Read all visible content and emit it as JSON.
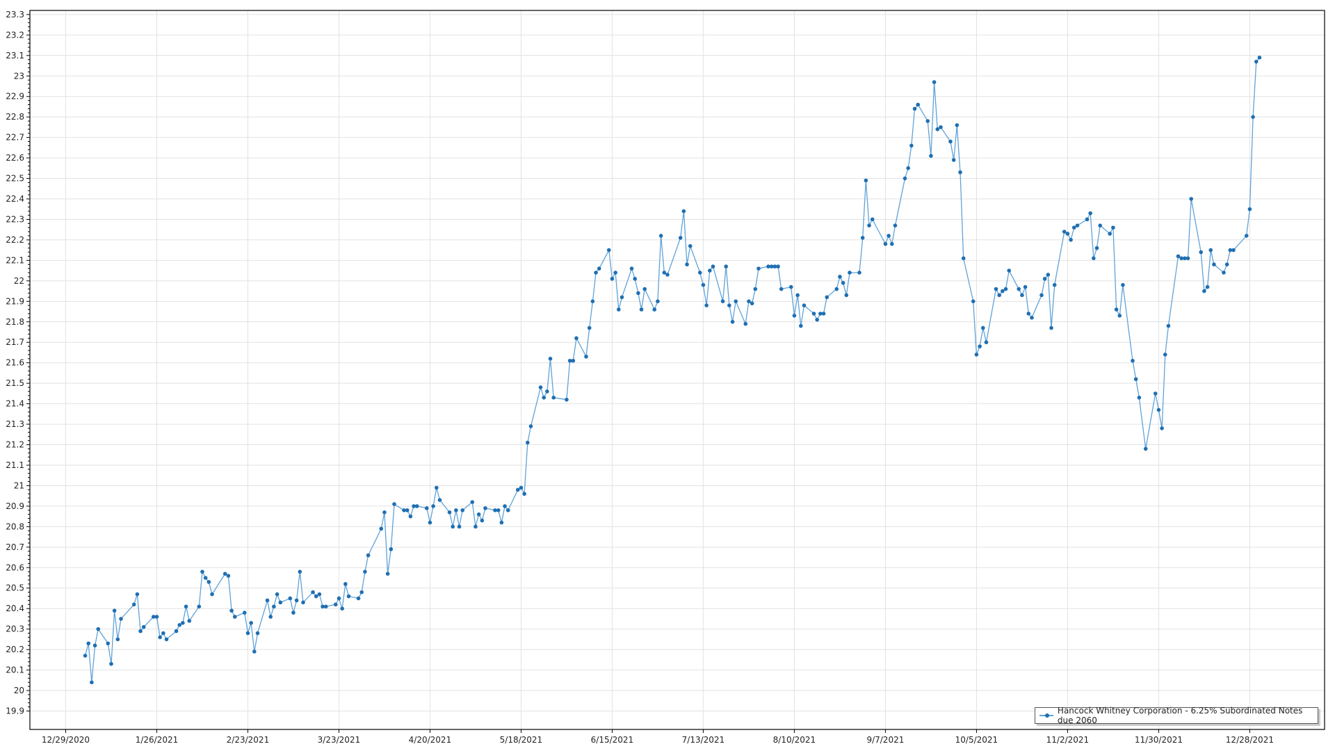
{
  "chart_data": {
    "type": "line",
    "title": "",
    "xlabel": "",
    "ylabel": "",
    "ylim": [
      19.81,
      23.32
    ],
    "xlim": [
      "12/18/2020",
      "1/20/2022"
    ],
    "grid": true,
    "legend_position": "bottom-right",
    "x_ticks": [
      "12/29/2020",
      "1/26/2021",
      "2/23/2021",
      "3/23/2021",
      "4/20/2021",
      "5/18/2021",
      "6/15/2021",
      "7/13/2021",
      "8/10/2021",
      "9/7/2021",
      "10/5/2021",
      "11/2/2021",
      "11/30/2021",
      "12/28/2021"
    ],
    "y_ticks": [
      "19.9",
      "20",
      "20.1",
      "20.2",
      "20.3",
      "20.4",
      "20.5",
      "20.6",
      "20.7",
      "20.8",
      "20.9",
      "21",
      "21.1",
      "21.2",
      "21.3",
      "21.4",
      "21.5",
      "21.6",
      "21.7",
      "21.8",
      "21.9",
      "22",
      "22.1",
      "22.2",
      "22.3",
      "22.4",
      "22.5",
      "22.6",
      "22.7",
      "22.8",
      "22.9",
      "23",
      "23.1",
      "23.2",
      "23.3"
    ],
    "colors": {
      "line": "#5fa2d8",
      "marker": "#1f6fb2",
      "grid": "#e2e2e2",
      "axis": "#000000"
    },
    "series": [
      {
        "name": "Hancock Whitney Corporation - 6.25% Subordinated Notes due 2060",
        "x": [
          "1/4/2021",
          "1/5/2021",
          "1/6/2021",
          "1/7/2021",
          "1/8/2021",
          "1/11/2021",
          "1/12/2021",
          "1/13/2021",
          "1/14/2021",
          "1/15/2021",
          "1/19/2021",
          "1/20/2021",
          "1/21/2021",
          "1/22/2021",
          "1/25/2021",
          "1/26/2021",
          "1/27/2021",
          "1/28/2021",
          "1/29/2021",
          "2/1/2021",
          "2/2/2021",
          "2/3/2021",
          "2/4/2021",
          "2/5/2021",
          "2/8/2021",
          "2/9/2021",
          "2/10/2021",
          "2/11/2021",
          "2/12/2021",
          "2/16/2021",
          "2/17/2021",
          "2/18/2021",
          "2/19/2021",
          "2/22/2021",
          "2/23/2021",
          "2/24/2021",
          "2/25/2021",
          "2/26/2021",
          "3/1/2021",
          "3/2/2021",
          "3/3/2021",
          "3/4/2021",
          "3/5/2021",
          "3/8/2021",
          "3/9/2021",
          "3/10/2021",
          "3/11/2021",
          "3/12/2021",
          "3/15/2021",
          "3/16/2021",
          "3/17/2021",
          "3/18/2021",
          "3/19/2021",
          "3/22/2021",
          "3/23/2021",
          "3/24/2021",
          "3/25/2021",
          "3/26/2021",
          "3/29/2021",
          "3/30/2021",
          "3/31/2021",
          "4/1/2021",
          "4/5/2021",
          "4/6/2021",
          "4/7/2021",
          "4/8/2021",
          "4/9/2021",
          "4/12/2021",
          "4/13/2021",
          "4/14/2021",
          "4/15/2021",
          "4/16/2021",
          "4/19/2021",
          "4/20/2021",
          "4/21/2021",
          "4/22/2021",
          "4/23/2021",
          "4/26/2021",
          "4/27/2021",
          "4/28/2021",
          "4/29/2021",
          "4/30/2021",
          "5/3/2021",
          "5/4/2021",
          "5/5/2021",
          "5/6/2021",
          "5/7/2021",
          "5/10/2021",
          "5/11/2021",
          "5/12/2021",
          "5/13/2021",
          "5/14/2021",
          "5/17/2021",
          "5/18/2021",
          "5/19/2021",
          "5/20/2021",
          "5/21/2021",
          "5/24/2021",
          "5/25/2021",
          "5/26/2021",
          "5/27/2021",
          "5/28/2021",
          "6/1/2021",
          "6/2/2021",
          "6/3/2021",
          "6/4/2021",
          "6/7/2021",
          "6/8/2021",
          "6/9/2021",
          "6/10/2021",
          "6/11/2021",
          "6/14/2021",
          "6/15/2021",
          "6/16/2021",
          "6/17/2021",
          "6/18/2021",
          "6/21/2021",
          "6/22/2021",
          "6/23/2021",
          "6/24/2021",
          "6/25/2021",
          "6/28/2021",
          "6/29/2021",
          "6/30/2021",
          "7/1/2021",
          "7/2/2021",
          "7/6/2021",
          "7/7/2021",
          "7/8/2021",
          "7/9/2021",
          "7/12/2021",
          "7/13/2021",
          "7/14/2021",
          "7/15/2021",
          "7/16/2021",
          "7/19/2021",
          "7/20/2021",
          "7/21/2021",
          "7/22/2021",
          "7/23/2021",
          "7/26/2021",
          "7/27/2021",
          "7/28/2021",
          "7/29/2021",
          "7/30/2021",
          "8/2/2021",
          "8/3/2021",
          "8/4/2021",
          "8/5/2021",
          "8/6/2021",
          "8/9/2021",
          "8/10/2021",
          "8/11/2021",
          "8/12/2021",
          "8/13/2021",
          "8/16/2021",
          "8/17/2021",
          "8/18/2021",
          "8/19/2021",
          "8/20/2021",
          "8/23/2021",
          "8/24/2021",
          "8/25/2021",
          "8/26/2021",
          "8/27/2021",
          "8/30/2021",
          "8/31/2021",
          "9/1/2021",
          "9/2/2021",
          "9/3/2021",
          "9/7/2021",
          "9/8/2021",
          "9/9/2021",
          "9/10/2021",
          "9/13/2021",
          "9/14/2021",
          "9/15/2021",
          "9/16/2021",
          "9/17/2021",
          "9/20/2021",
          "9/21/2021",
          "9/22/2021",
          "9/23/2021",
          "9/24/2021",
          "9/27/2021",
          "9/28/2021",
          "9/29/2021",
          "9/30/2021",
          "10/1/2021",
          "10/4/2021",
          "10/5/2021",
          "10/6/2021",
          "10/7/2021",
          "10/8/2021",
          "10/11/2021",
          "10/12/2021",
          "10/13/2021",
          "10/14/2021",
          "10/15/2021",
          "10/18/2021",
          "10/19/2021",
          "10/20/2021",
          "10/21/2021",
          "10/22/2021",
          "10/25/2021",
          "10/26/2021",
          "10/27/2021",
          "10/28/2021",
          "10/29/2021",
          "11/1/2021",
          "11/2/2021",
          "11/3/2021",
          "11/4/2021",
          "11/5/2021",
          "11/8/2021",
          "11/9/2021",
          "11/10/2021",
          "11/11/2021",
          "11/12/2021",
          "11/15/2021",
          "11/16/2021",
          "11/17/2021",
          "11/18/2021",
          "11/19/2021",
          "11/22/2021",
          "11/23/2021",
          "11/24/2021",
          "11/26/2021",
          "11/29/2021",
          "11/30/2021",
          "12/1/2021",
          "12/2/2021",
          "12/3/2021",
          "12/6/2021",
          "12/7/2021",
          "12/8/2021",
          "12/9/2021",
          "12/10/2021",
          "12/13/2021",
          "12/14/2021",
          "12/15/2021",
          "12/16/2021",
          "12/17/2021",
          "12/20/2021",
          "12/21/2021",
          "12/22/2021",
          "12/23/2021",
          "12/27/2021",
          "12/28/2021",
          "12/29/2021",
          "12/30/2021",
          "12/31/2021"
        ],
        "y": [
          20.17,
          20.23,
          20.04,
          20.22,
          20.3,
          20.23,
          20.13,
          20.39,
          20.25,
          20.35,
          20.42,
          20.47,
          20.29,
          20.31,
          20.36,
          20.36,
          20.26,
          20.28,
          20.25,
          20.29,
          20.32,
          20.33,
          20.41,
          20.34,
          20.41,
          20.58,
          20.55,
          20.53,
          20.47,
          20.57,
          20.56,
          20.39,
          20.36,
          20.38,
          20.28,
          20.33,
          20.19,
          20.28,
          20.44,
          20.36,
          20.41,
          20.47,
          20.43,
          20.45,
          20.38,
          20.44,
          20.58,
          20.43,
          20.48,
          20.46,
          20.47,
          20.41,
          20.41,
          20.42,
          20.45,
          20.4,
          20.52,
          20.46,
          20.45,
          20.48,
          20.58,
          20.66,
          20.79,
          20.87,
          20.57,
          20.69,
          20.91,
          20.88,
          20.88,
          20.85,
          20.9,
          20.9,
          20.89,
          20.82,
          20.9,
          20.99,
          20.93,
          20.87,
          20.8,
          20.88,
          20.8,
          20.88,
          20.92,
          20.8,
          20.86,
          20.83,
          20.89,
          20.88,
          20.88,
          20.82,
          20.9,
          20.88,
          20.98,
          20.99,
          20.96,
          21.21,
          21.29,
          21.48,
          21.43,
          21.46,
          21.62,
          21.43,
          21.42,
          21.61,
          21.61,
          21.72,
          21.63,
          21.77,
          21.9,
          22.04,
          22.06,
          22.15,
          22.01,
          22.04,
          21.86,
          21.92,
          22.06,
          22.01,
          21.94,
          21.86,
          21.96,
          21.86,
          21.9,
          22.22,
          22.04,
          22.03,
          22.21,
          22.34,
          22.08,
          22.17,
          22.04,
          21.98,
          21.88,
          22.05,
          22.07,
          21.9,
          22.07,
          21.88,
          21.8,
          21.9,
          21.79,
          21.9,
          21.89,
          21.96,
          22.06,
          22.07,
          22.07,
          22.07,
          22.07,
          21.96,
          21.97,
          21.83,
          21.93,
          21.78,
          21.88,
          21.84,
          21.81,
          21.84,
          21.84,
          21.92,
          21.96,
          22.02,
          21.99,
          21.93,
          22.04,
          22.04,
          22.21,
          22.49,
          22.27,
          22.3,
          22.18,
          22.22,
          22.18,
          22.27,
          22.5,
          22.55,
          22.66,
          22.84,
          22.86,
          22.78,
          22.61,
          22.97,
          22.74,
          22.75,
          22.68,
          22.59,
          22.76,
          22.53,
          22.11,
          21.9,
          21.64,
          21.68,
          21.77,
          21.7,
          21.96,
          21.93,
          21.95,
          21.96,
          22.05,
          21.96,
          21.93,
          21.97,
          21.84,
          21.82,
          21.93,
          22.01,
          22.03,
          21.77,
          21.98,
          22.24,
          22.23,
          22.2,
          22.26,
          22.27,
          22.3,
          22.33,
          22.11,
          22.16,
          22.27,
          22.23,
          22.26,
          21.86,
          21.83,
          21.98,
          21.61,
          21.52,
          21.43,
          21.18,
          21.45,
          21.37,
          21.28,
          21.64,
          21.78,
          22.12,
          22.11,
          22.11,
          22.11,
          22.4,
          22.14,
          21.95,
          21.97,
          22.15,
          22.08,
          22.04,
          22.08,
          22.15,
          22.15,
          22.22,
          22.35,
          22.8,
          23.07,
          23.09
        ]
      }
    ]
  }
}
